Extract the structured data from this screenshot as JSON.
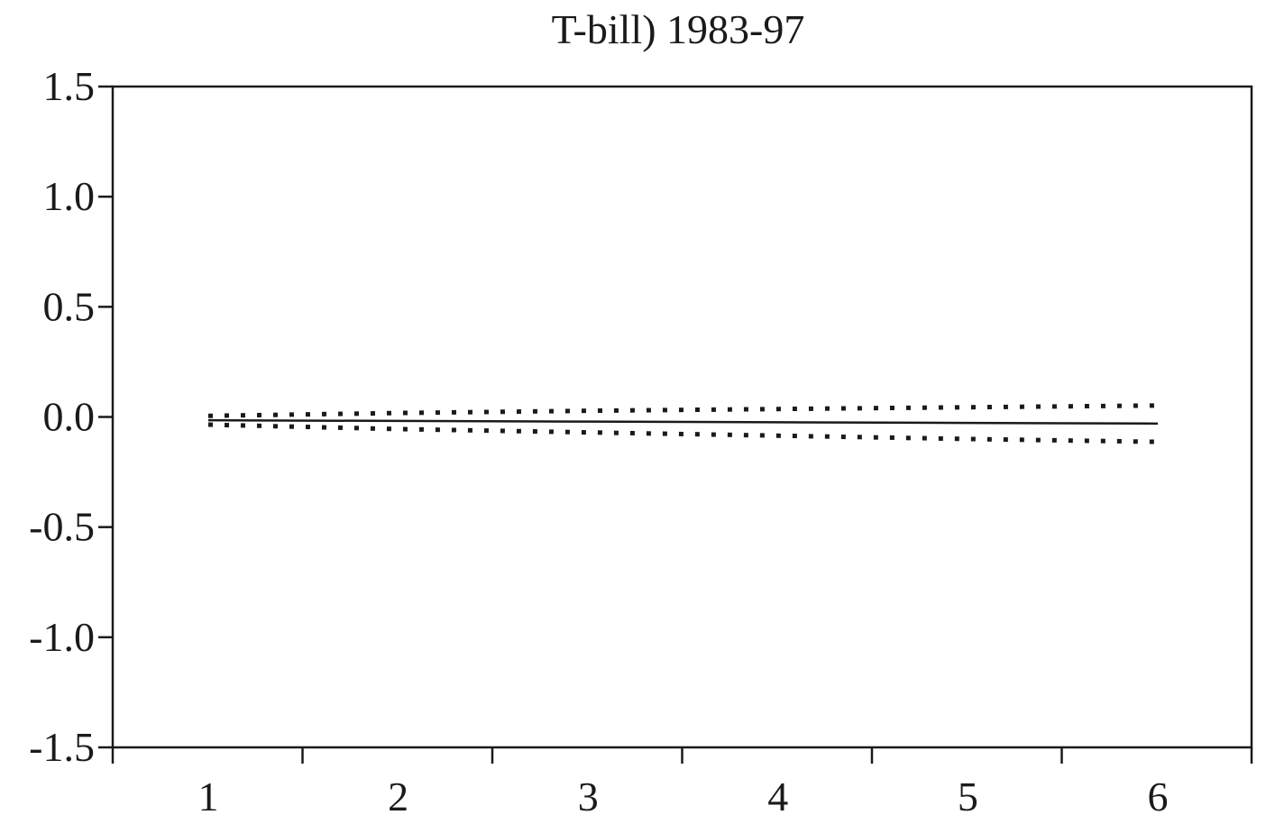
{
  "chart_data": {
    "type": "line",
    "title_line_visible": "T-bill) 1983-97",
    "x": [
      1,
      2,
      3,
      4,
      5,
      6
    ],
    "xticks": [
      "1",
      "2",
      "3",
      "4",
      "5",
      "6"
    ],
    "ylim": [
      -1.5,
      1.5
    ],
    "yticks": [
      "1.5",
      "1.0",
      "0.5",
      "0.0",
      "-0.5",
      "-1.0",
      "-1.5"
    ],
    "ytick_values": [
      1.5,
      1.0,
      0.5,
      0.0,
      -0.5,
      -1.0,
      -1.5
    ],
    "series": [
      {
        "style": "solid",
        "values": [
          -0.015,
          -0.018,
          -0.021,
          -0.024,
          -0.027,
          -0.03
        ]
      },
      {
        "style": "dotted",
        "values": [
          0.005,
          0.018,
          0.028,
          0.036,
          0.044,
          0.052
        ]
      },
      {
        "style": "dotted",
        "values": [
          -0.035,
          -0.055,
          -0.07,
          -0.085,
          -0.1,
          -0.113
        ]
      }
    ],
    "grid": false,
    "colors": {
      "line": "#1a1a1a",
      "frame": "#1a1a1a",
      "background": "#ffffff"
    }
  }
}
